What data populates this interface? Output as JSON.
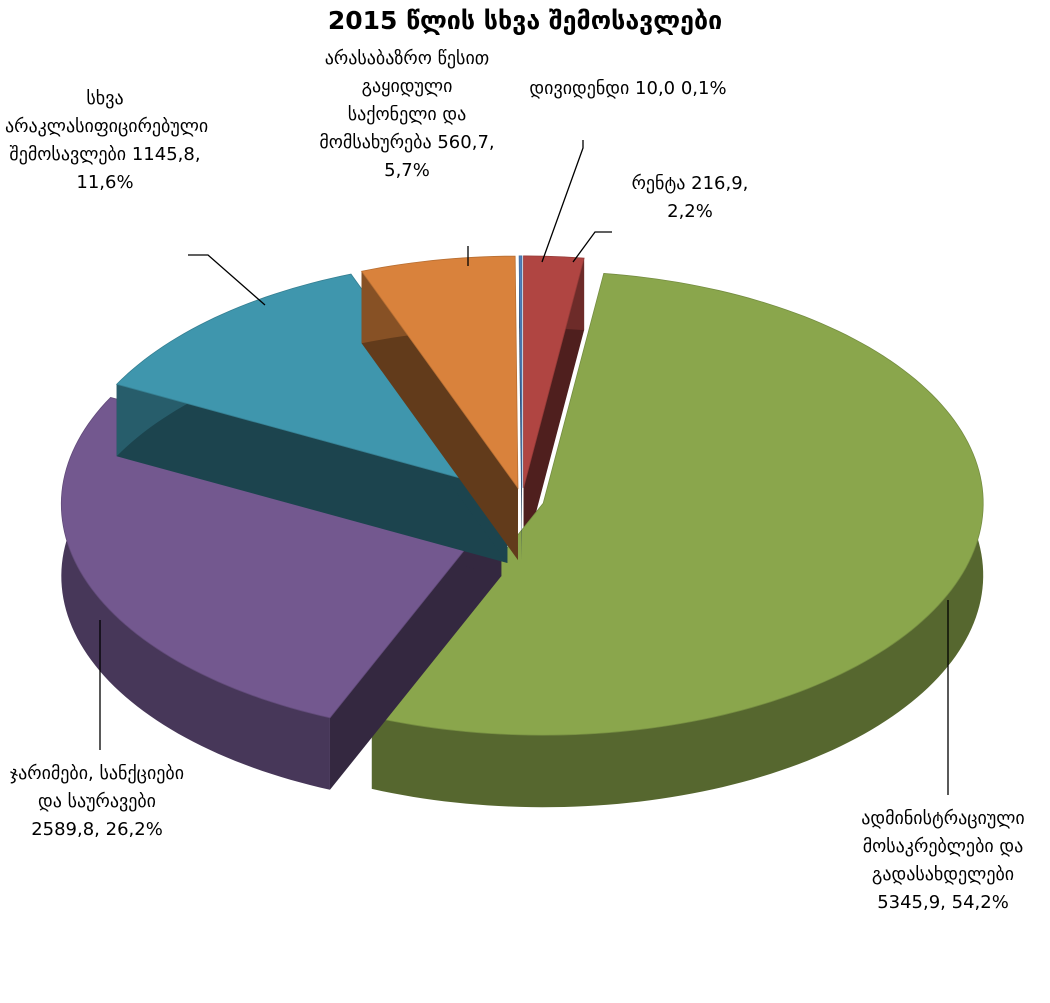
{
  "chart_data": {
    "type": "pie",
    "title": "2015 წლის სხვა შემოსავლები",
    "categories": [
      "რენტა",
      "ადმინისტრაციული მოსაკრებლები და გადასახდელები",
      "ჯარიმები, სანქციები და საურავები",
      "სხვა არაკლასიფიცირებული შემოსავლები",
      "არასაბაზრო წესით გაყიდული საქონელი და მომსახურება",
      "დივიდენდი"
    ],
    "values": [
      216.9,
      5345.9,
      2589.8,
      1145.8,
      560.7,
      10.0
    ],
    "value_labels": [
      "216,9, 2,2%",
      "5345,9,  54,2%",
      "2589,8, 26,2%",
      "1145,8, 11,6%",
      "560,7, 5,7%",
      "10,0 0,1%"
    ],
    "colors": [
      "#b04542",
      "#8aa64c",
      "#73588f",
      "#3f96ad",
      "#d9823c",
      "#4f7fba"
    ]
  }
}
